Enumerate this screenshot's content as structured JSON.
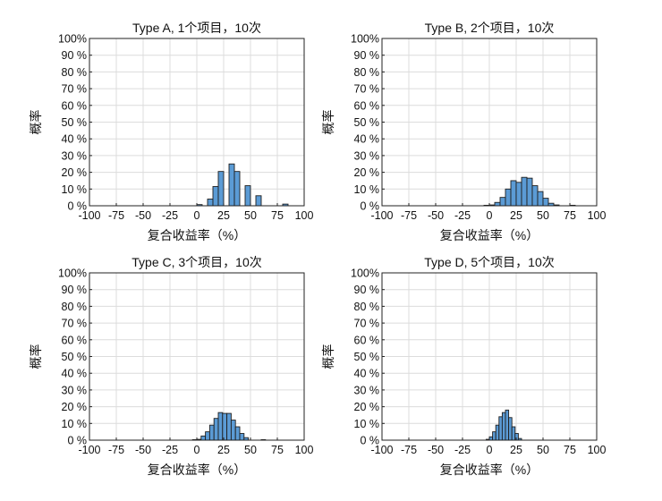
{
  "figure": {
    "bar_color": "#5b9bd5",
    "bar_edge_color": "#1f1f1f",
    "grid_color": "#dcdcdc",
    "axis_color": "#222222"
  },
  "chart_data": [
    {
      "type": "bar",
      "title": "Type A, 1个项目，10次",
      "xlabel": "复合收益率（%）",
      "ylabel": "概率",
      "xlim": [
        -100,
        100
      ],
      "ylim": [
        0,
        100
      ],
      "xticks": [
        -100,
        -75,
        -50,
        -25,
        0,
        25,
        50,
        75,
        100
      ],
      "xtick_labels": [
        "-100",
        "-75",
        "-50",
        "-25",
        "0",
        "25",
        "50",
        "75",
        "100"
      ],
      "yticks": [
        0,
        10,
        20,
        30,
        40,
        50,
        60,
        70,
        80,
        90,
        100
      ],
      "ytick_labels": [
        "0 %",
        "10 %",
        "20 %",
        "30 %",
        "40 %",
        "50 %",
        "60 %",
        "70 %",
        "80 %",
        "90 %",
        "100%"
      ],
      "grid": true,
      "bin_width": 5,
      "bin_centers": [
        2.5,
        7.5,
        12.5,
        17.5,
        22.5,
        27.5,
        32.5,
        37.5,
        42.5,
        47.5,
        52.5,
        57.5,
        62.5,
        67.5,
        72.5,
        77.5,
        82.5
      ],
      "values": [
        0.7,
        0,
        4,
        11.5,
        20.5,
        0,
        25,
        20.5,
        0,
        12,
        0,
        6,
        0,
        0,
        0,
        0,
        1
      ]
    },
    {
      "type": "bar",
      "title": "Type B, 2个项目，10次",
      "xlabel": "复合收益率（%）",
      "ylabel": "概率",
      "xlim": [
        -100,
        100
      ],
      "ylim": [
        0,
        100
      ],
      "xticks": [
        -100,
        -75,
        -50,
        -25,
        0,
        25,
        50,
        75,
        100
      ],
      "xtick_labels": [
        "-100",
        "-75",
        "-50",
        "-25",
        "0",
        "25",
        "50",
        "75",
        "100"
      ],
      "yticks": [
        0,
        10,
        20,
        30,
        40,
        50,
        60,
        70,
        80,
        90,
        100
      ],
      "ytick_labels": [
        "0 %",
        "10 %",
        "20 %",
        "30 %",
        "40 %",
        "50 %",
        "60 %",
        "70 %",
        "80 %",
        "90 %",
        "100%"
      ],
      "grid": true,
      "bin_width": 5,
      "bin_centers": [
        -2.5,
        2.5,
        7.5,
        12.5,
        17.5,
        22.5,
        27.5,
        32.5,
        37.5,
        42.5,
        47.5,
        52.5,
        57.5,
        62.5,
        77.5
      ],
      "values": [
        0.3,
        0.5,
        2,
        5,
        10,
        15,
        14,
        17,
        16.5,
        12,
        8.5,
        4.5,
        1.5,
        0.5,
        0.3
      ]
    },
    {
      "type": "bar",
      "title": "Type C, 3个项目，10次",
      "xlabel": "复合收益率（%）",
      "ylabel": "概率",
      "xlim": [
        -100,
        100
      ],
      "ylim": [
        0,
        100
      ],
      "xticks": [
        -100,
        -75,
        -50,
        -25,
        0,
        25,
        50,
        75,
        100
      ],
      "xtick_labels": [
        "-100",
        "-75",
        "-50",
        "-25",
        "0",
        "25",
        "50",
        "75",
        "100"
      ],
      "yticks": [
        0,
        10,
        20,
        30,
        40,
        50,
        60,
        70,
        80,
        90,
        100
      ],
      "ytick_labels": [
        "0 %",
        "10 %",
        "20 %",
        "30 %",
        "40 %",
        "50 %",
        "60 %",
        "70 %",
        "80 %",
        "90 %",
        "100%"
      ],
      "grid": true,
      "bin_width": 4,
      "bin_centers": [
        -2,
        2,
        6,
        10,
        14,
        18,
        22,
        26,
        30,
        34,
        38,
        42,
        46,
        62
      ],
      "values": [
        0.3,
        0.5,
        2.5,
        5,
        9,
        13,
        16.5,
        16,
        16,
        12,
        8,
        4,
        1.5,
        0.3
      ]
    },
    {
      "type": "bar",
      "title": "Type D, 5个项目，10次",
      "xlabel": "复合收益率（%）",
      "ylabel": "概率",
      "xlim": [
        -100,
        100
      ],
      "ylim": [
        0,
        100
      ],
      "xticks": [
        -100,
        -75,
        -50,
        -25,
        0,
        25,
        50,
        75,
        100
      ],
      "xtick_labels": [
        "-100",
        "-75",
        "-50",
        "-25",
        "0",
        "25",
        "50",
        "75",
        "100"
      ],
      "yticks": [
        0,
        10,
        20,
        30,
        40,
        50,
        60,
        70,
        80,
        90,
        100
      ],
      "ytick_labels": [
        "0 %",
        "10 %",
        "20 %",
        "30 %",
        "40 %",
        "50 %",
        "60 %",
        "70 %",
        "80 %",
        "90 %",
        "100%"
      ],
      "grid": true,
      "bin_width": 3,
      "bin_centers": [
        -1.5,
        1.5,
        4.5,
        7.5,
        10.5,
        13.5,
        16.5,
        19.5,
        22.5,
        25.5,
        28.5
      ],
      "values": [
        0.5,
        2,
        5,
        9,
        14,
        16.5,
        18,
        13.5,
        8,
        4,
        1
      ]
    }
  ]
}
